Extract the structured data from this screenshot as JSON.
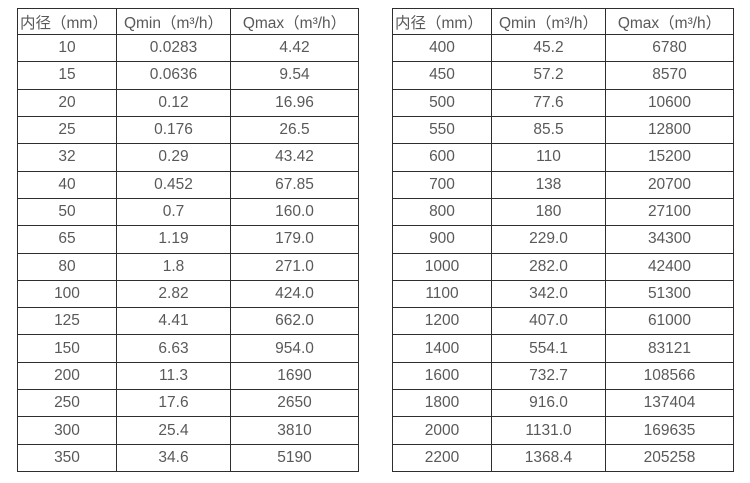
{
  "page": {
    "background_color": "#ffffff",
    "border_color": "#2e2e2e",
    "text_color": "#595959"
  },
  "tables": [
    {
      "name": "flow-rate-table-left",
      "columns": [
        "内径（mm）",
        "Qmin（m³/h）",
        "Qmax（m³/h）"
      ],
      "rows": [
        [
          "10",
          "0.0283",
          "4.42"
        ],
        [
          "15",
          "0.0636",
          "9.54"
        ],
        [
          "20",
          "0.12",
          "16.96"
        ],
        [
          "25",
          "0.176",
          "26.5"
        ],
        [
          "32",
          "0.29",
          "43.42"
        ],
        [
          "40",
          "0.452",
          "67.85"
        ],
        [
          "50",
          "0.7",
          "160.0"
        ],
        [
          "65",
          "1.19",
          "179.0"
        ],
        [
          "80",
          "1.8",
          "271.0"
        ],
        [
          "100",
          "2.82",
          "424.0"
        ],
        [
          "125",
          "4.41",
          "662.0"
        ],
        [
          "150",
          "6.63",
          "954.0"
        ],
        [
          "200",
          "11.3",
          "1690"
        ],
        [
          "250",
          "17.6",
          "2650"
        ],
        [
          "300",
          "25.4",
          "3810"
        ],
        [
          "350",
          "34.6",
          "5190"
        ]
      ]
    },
    {
      "name": "flow-rate-table-right",
      "columns": [
        "内径（mm）",
        "Qmin（m³/h）",
        "Qmax（m³/h）"
      ],
      "rows": [
        [
          "400",
          "45.2",
          "6780"
        ],
        [
          "450",
          "57.2",
          "8570"
        ],
        [
          "500",
          "77.6",
          "10600"
        ],
        [
          "550",
          "85.5",
          "12800"
        ],
        [
          "600",
          "110",
          "15200"
        ],
        [
          "700",
          "138",
          "20700"
        ],
        [
          "800",
          "180",
          "27100"
        ],
        [
          "900",
          "229.0",
          "34300"
        ],
        [
          "1000",
          "282.0",
          "42400"
        ],
        [
          "1100",
          "342.0",
          "51300"
        ],
        [
          "1200",
          "407.0",
          "61000"
        ],
        [
          "1400",
          "554.1",
          "83121"
        ],
        [
          "1600",
          "732.7",
          "108566"
        ],
        [
          "1800",
          "916.0",
          "137404"
        ],
        [
          "2000",
          "1131.0",
          "169635"
        ],
        [
          "2200",
          "1368.4",
          "205258"
        ]
      ]
    }
  ]
}
